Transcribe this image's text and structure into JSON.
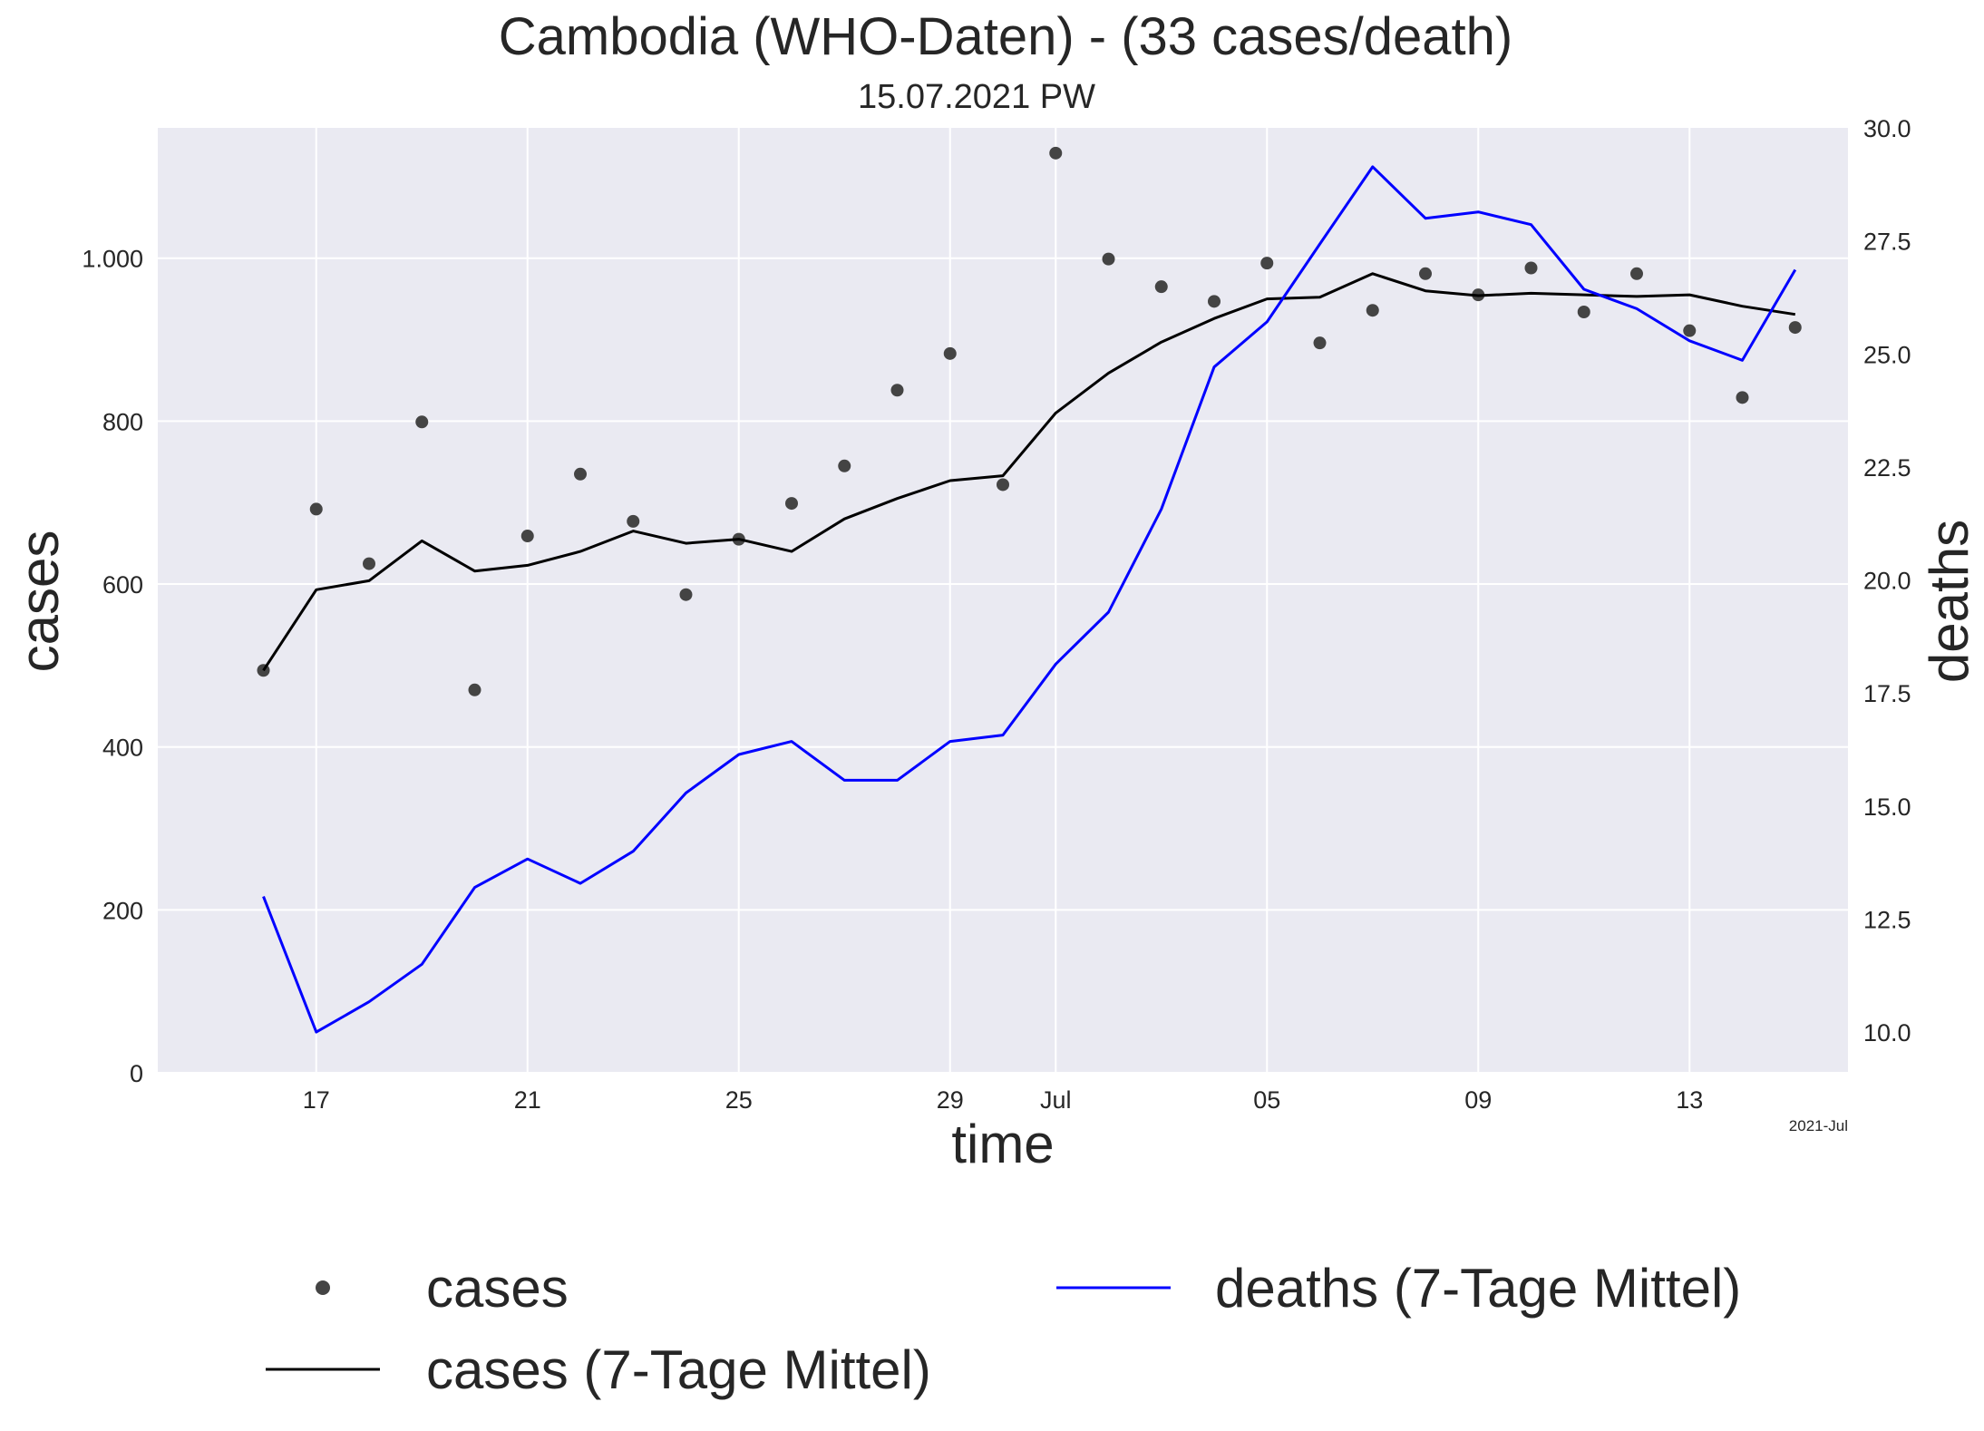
{
  "chart_data": {
    "type": "line",
    "title": "Cambodia (WHO-Daten) - (33 cases/death)",
    "subtitle": "15.07.2021 PW",
    "xlabel": "time",
    "ylabel_left": "cases",
    "ylabel_right": "deaths",
    "x_axis_note": "2021-Jul",
    "x_tick_labels": [
      {
        "date": "2021-06-17",
        "label": "17"
      },
      {
        "date": "2021-06-21",
        "label": "21"
      },
      {
        "date": "2021-06-25",
        "label": "25"
      },
      {
        "date": "2021-06-29",
        "label": "29"
      },
      {
        "date": "2021-07-01",
        "label": "Jul"
      },
      {
        "date": "2021-07-05",
        "label": "05"
      },
      {
        "date": "2021-07-09",
        "label": "09"
      },
      {
        "date": "2021-07-13",
        "label": "13"
      }
    ],
    "xlim": [
      "2021-06-14",
      "2021-07-16"
    ],
    "ylim_left": [
      0,
      1160
    ],
    "ylim_right": [
      9.1,
      30.0
    ],
    "y_ticks_left": [
      0,
      200,
      400,
      600,
      800,
      1000
    ],
    "y_tick_labels_left": [
      "0",
      "200",
      "400",
      "600",
      "800",
      "1.000"
    ],
    "y_ticks_right": [
      10.0,
      12.5,
      15.0,
      17.5,
      20.0,
      22.5,
      25.0,
      27.5,
      30.0
    ],
    "y_tick_labels_right": [
      "10.0",
      "12.5",
      "15.0",
      "17.5",
      "20.0",
      "22.5",
      "25.0",
      "27.5",
      "30.0"
    ],
    "grid": true,
    "legend_placement": "below",
    "colors": {
      "cases_points": "#444444",
      "cases_avg": "#000000",
      "deaths_avg": "#0000ff",
      "deaths_label": "#0000ff",
      "plot_background": "#eaeaf2",
      "grid": "#ffffff"
    },
    "dates": [
      "2021-06-16",
      "2021-06-17",
      "2021-06-18",
      "2021-06-19",
      "2021-06-20",
      "2021-06-21",
      "2021-06-22",
      "2021-06-23",
      "2021-06-24",
      "2021-06-25",
      "2021-06-26",
      "2021-06-27",
      "2021-06-28",
      "2021-06-29",
      "2021-06-30",
      "2021-07-01",
      "2021-07-02",
      "2021-07-03",
      "2021-07-04",
      "2021-07-05",
      "2021-07-06",
      "2021-07-07",
      "2021-07-08",
      "2021-07-09",
      "2021-07-10",
      "2021-07-11",
      "2021-07-12",
      "2021-07-13",
      "2021-07-14",
      "2021-07-15"
    ],
    "series": [
      {
        "name": "cases",
        "axis": "left",
        "style": "points",
        "values": [
          494,
          692,
          625,
          799,
          470,
          659,
          735,
          677,
          587,
          655,
          699,
          745,
          838,
          883,
          722,
          1129,
          999,
          965,
          947,
          994,
          896,
          936,
          981,
          955,
          988,
          934,
          981,
          911,
          829,
          915
        ]
      },
      {
        "name": "cases (7-Tage Mittel)",
        "axis": "left",
        "style": "line",
        "values": [
          494,
          593,
          604,
          653,
          616,
          623,
          640,
          665,
          650,
          655,
          640,
          680,
          705,
          727,
          733,
          810,
          859,
          897,
          926,
          950,
          952,
          981,
          960,
          954,
          957,
          955,
          953,
          955,
          941,
          931
        ]
      },
      {
        "name": "deaths (7-Tage Mittel)",
        "axis": "right",
        "style": "line",
        "values": [
          13.0,
          10.0,
          10.67,
          11.5,
          13.2,
          13.83,
          13.29,
          14.0,
          15.29,
          16.14,
          16.43,
          15.57,
          15.57,
          16.43,
          16.57,
          18.14,
          19.29,
          21.57,
          24.71,
          25.71,
          27.43,
          29.14,
          28.0,
          28.14,
          27.86,
          26.43,
          26.0,
          25.29,
          24.86,
          26.86
        ]
      }
    ]
  },
  "legend": {
    "items": [
      {
        "label": "cases"
      },
      {
        "label": "cases (7-Tage Mittel)"
      },
      {
        "label": "deaths (7-Tage Mittel)"
      }
    ]
  }
}
